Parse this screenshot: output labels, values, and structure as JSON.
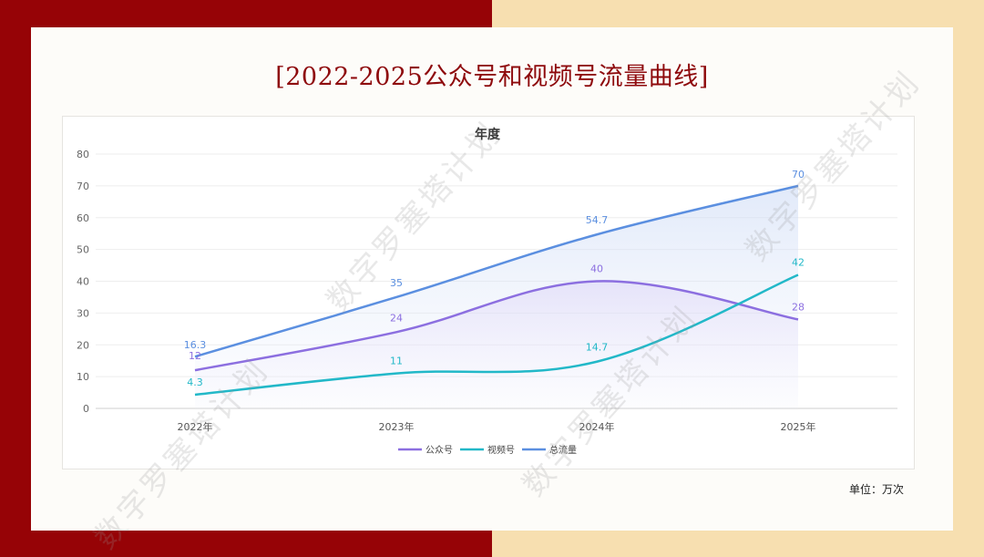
{
  "page": {
    "title": "[2022-2025公众号和视频号流量曲线]",
    "unit_label": "单位：万次",
    "watermark": "数字罗塞塔计划"
  },
  "chart_data": {
    "type": "line",
    "title": "年度",
    "categories": [
      "2022年",
      "2023年",
      "2024年",
      "2025年"
    ],
    "ylim": [
      0,
      80
    ],
    "yticks": [
      0,
      10,
      20,
      30,
      40,
      50,
      60,
      70,
      80
    ],
    "grid": true,
    "legend_position": "bottom",
    "series": [
      {
        "name": "公众号",
        "values": [
          12,
          24,
          40,
          28
        ],
        "color": "#8c6fe0",
        "labels": [
          "12",
          "24",
          "40",
          "28"
        ]
      },
      {
        "name": "视频号",
        "values": [
          4.3,
          11,
          14.7,
          42
        ],
        "color": "#22b8c8",
        "labels": [
          "4.3",
          "11",
          "14.7",
          "42"
        ]
      },
      {
        "name": "总流量",
        "values": [
          16.3,
          35,
          54.7,
          70
        ],
        "color": "#5b8fe0",
        "labels": [
          "16.3",
          "35",
          "54.7",
          "70"
        ]
      }
    ]
  }
}
